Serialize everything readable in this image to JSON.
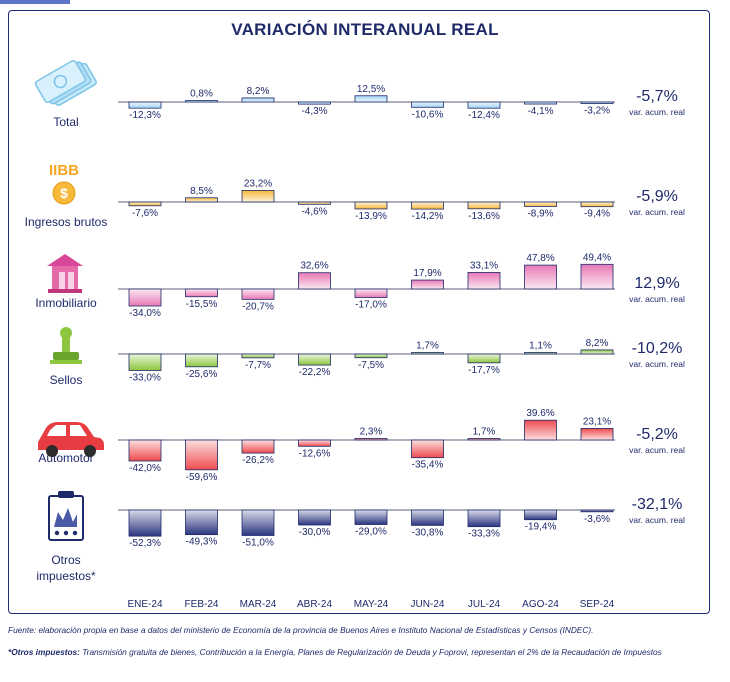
{
  "chart_data": {
    "type": "bar",
    "title": "VARIACIÓN INTERANUAL REAL",
    "categories": [
      "ENE-24",
      "FEB-24",
      "MAR-24",
      "ABR-24",
      "MAY-24",
      "JUN-24",
      "JUL-24",
      "AGO-24",
      "SEP-24"
    ],
    "panels": [
      {
        "name": "Total",
        "icon": "money-stack-icon",
        "color": "#9fd3f3",
        "values": [
          -12.3,
          0.8,
          8.2,
          -4.3,
          12.5,
          -10.6,
          -12.4,
          -4.1,
          -3.2
        ],
        "labels": [
          "-12,3%",
          "0,8%",
          "8,2%",
          "-4,3%",
          "12,5%",
          "-10,6%",
          "-12,4%",
          "-4,1%",
          "-3,2%"
        ],
        "acum_value": "-5,7%",
        "acum_label": "var. acum. real"
      },
      {
        "name": "Ingresos brutos",
        "icon": "iibb-coin-icon",
        "icon_text": "IIBB",
        "color": "#f6b93b",
        "values": [
          -7.6,
          8.5,
          23.2,
          -4.6,
          -13.9,
          -14.2,
          -13.6,
          -8.9,
          -9.4
        ],
        "labels": [
          "-7,6%",
          "8,5%",
          "23,2%",
          "-4,6%",
          "-13,9%",
          "-14,2%",
          "-13,6%",
          "-8,9%",
          "-9,4%"
        ],
        "acum_value": "-5,9%",
        "acum_label": "var. acum. real"
      },
      {
        "name": "Inmobiliario",
        "icon": "house-icon",
        "color": "#e879b6",
        "values": [
          -34.0,
          -15.5,
          -20.7,
          32.6,
          -17.0,
          17.9,
          33.1,
          47.8,
          49.4
        ],
        "labels": [
          "-34,0%",
          "-15,5%",
          "-20,7%",
          "32,6%",
          "-17,0%",
          "17,9%",
          "33,1%",
          "47,8%",
          "49,4%"
        ],
        "acum_value": "12,9%",
        "acum_label": "var. acum. real"
      },
      {
        "name": "Sellos",
        "icon": "stamp-icon",
        "color": "#8dc63f",
        "values": [
          -33.0,
          -25.6,
          -7.7,
          -22.2,
          -7.5,
          1.7,
          -17.7,
          1.1,
          8.2
        ],
        "labels": [
          "-33,0%",
          "-25,6%",
          "-7,7%",
          "-22,2%",
          "-7,5%",
          "1,7%",
          "-17,7%",
          "1,1%",
          "8,2%"
        ],
        "acum_value": "-10,2%",
        "acum_label": "var. acum. real"
      },
      {
        "name": "Automotor",
        "icon": "car-icon",
        "color": "#ee4b4f",
        "values": [
          -42.0,
          -59.6,
          -26.2,
          -12.6,
          2.3,
          -35.4,
          1.7,
          39.6,
          23.1
        ],
        "labels": [
          "-42,0%",
          "-59,6%",
          "-26,2%",
          "-12,6%",
          "2,3%",
          "-35,4%",
          "1,7%",
          "39.6%",
          "23,1%"
        ],
        "acum_value": "-5,2%",
        "acum_label": "var. acum. real"
      },
      {
        "name": "Otros impuestos*",
        "name_lines": [
          "Otros",
          "impuestos*"
        ],
        "icon": "document-icon",
        "color": "#2b3580",
        "values": [
          -52.3,
          -49.3,
          -51.0,
          -30.0,
          -29.0,
          -30.8,
          -33.3,
          -19.4,
          -3.6
        ],
        "labels": [
          "-52,3%",
          "-49,3%",
          "-51,0%",
          "-30,0%",
          "-29,0%",
          "-30,8%",
          "-33,3%",
          "-19,4%",
          "-3,6%"
        ],
        "acum_value": "-32,1%",
        "acum_label": "var. acum. real"
      }
    ]
  },
  "footnotes": {
    "source": "Fuente: elaboración propia en base a datos del ministerio de Economía de la provincia de Buenos Aires e Instituto Nacional de Estadísticas y Censos (INDEC).",
    "others_bold": "*Otros impuestos:",
    "others_text": " Transmisión gratuita de bienes, Contribución a la Energía, Planes de Regularización de Deuda y Foprovi, representan el 2% de la Recaudación de Impuestos"
  }
}
